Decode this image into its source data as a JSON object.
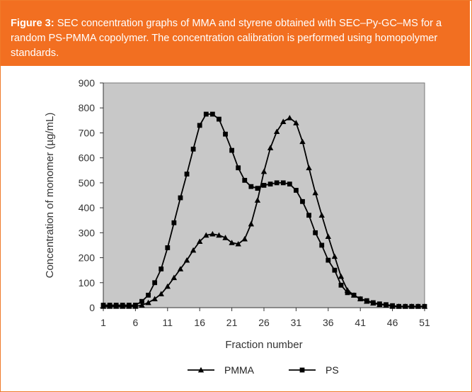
{
  "figure": {
    "label": "Figure 3:",
    "caption": "SEC concentration graphs of MMA and styrene obtained with SEC–Py-GC–MS for a random PS-PMMA copolymer. The concentration calibration is performed using homopolymer standards."
  },
  "colors": {
    "accent": "#f26f21",
    "plot_bg": "#c8c8c8",
    "series": "#000000"
  },
  "chart_data": {
    "type": "line",
    "title": "",
    "xlabel": "Fraction number",
    "ylabel": "Concentration of monomer (µg/mL)",
    "xlim": [
      1,
      51
    ],
    "ylim": [
      0,
      900
    ],
    "xticks": [
      1,
      6,
      11,
      16,
      21,
      26,
      31,
      36,
      41,
      46,
      51
    ],
    "yticks": [
      0,
      100,
      200,
      300,
      400,
      500,
      600,
      700,
      800,
      900
    ],
    "grid": false,
    "legend_position": "bottom",
    "x": [
      1,
      2,
      3,
      4,
      5,
      6,
      7,
      8,
      9,
      10,
      11,
      12,
      13,
      14,
      15,
      16,
      17,
      18,
      19,
      20,
      21,
      22,
      23,
      24,
      25,
      26,
      27,
      28,
      29,
      30,
      31,
      32,
      33,
      34,
      35,
      36,
      37,
      38,
      39,
      40,
      41,
      42,
      43,
      44,
      45,
      46,
      47,
      48,
      49,
      50,
      51
    ],
    "series": [
      {
        "name": "PMMA",
        "marker": "triangle",
        "values": [
          5,
          5,
          5,
          5,
          5,
          5,
          10,
          20,
          35,
          55,
          85,
          120,
          155,
          190,
          230,
          265,
          290,
          295,
          290,
          280,
          260,
          255,
          275,
          335,
          430,
          545,
          640,
          705,
          745,
          760,
          740,
          665,
          560,
          460,
          370,
          285,
          205,
          125,
          70,
          50,
          35,
          25,
          18,
          12,
          10,
          5,
          5,
          5,
          5,
          5,
          5
        ]
      },
      {
        "name": "PS",
        "marker": "square",
        "values": [
          10,
          10,
          10,
          10,
          10,
          10,
          25,
          50,
          100,
          155,
          240,
          340,
          440,
          535,
          635,
          730,
          775,
          775,
          755,
          695,
          630,
          560,
          510,
          485,
          478,
          490,
          495,
          500,
          500,
          495,
          470,
          425,
          370,
          300,
          250,
          190,
          150,
          90,
          60,
          50,
          35,
          28,
          20,
          15,
          12,
          8,
          5,
          5,
          5,
          5,
          5
        ]
      }
    ]
  }
}
